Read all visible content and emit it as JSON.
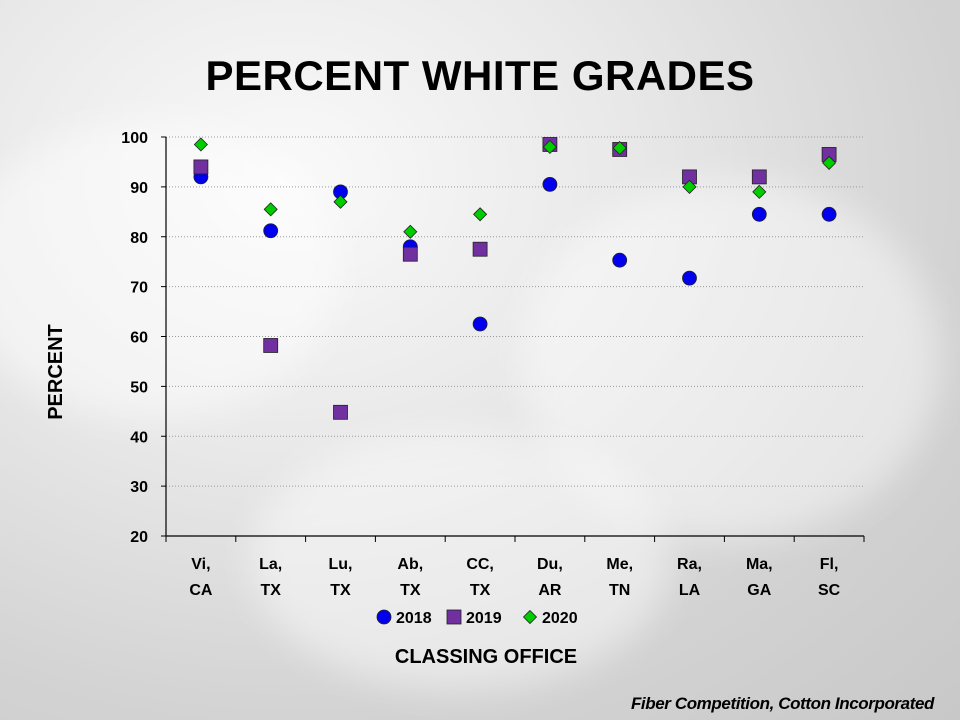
{
  "slide": {
    "title": "PERCENT WHITE GRADES",
    "credit": "Fiber Competition, Cotton Incorporated"
  },
  "chart_data": {
    "type": "scatter",
    "title": "PERCENT WHITE GRADES",
    "xlabel": "CLASSING OFFICE",
    "ylabel": "PERCENT",
    "ylim": [
      20,
      100
    ],
    "y_ticks": [
      20,
      30,
      40,
      50,
      60,
      70,
      80,
      90,
      100
    ],
    "grid": "horizontal-dotted",
    "legend": "bottom-center",
    "categories": [
      [
        "Vi,",
        "CA"
      ],
      [
        "La,",
        "TX"
      ],
      [
        "Lu,",
        "TX"
      ],
      [
        "Ab,",
        "TX"
      ],
      [
        "CC,",
        "TX"
      ],
      [
        "Du,",
        "AR"
      ],
      [
        "Me,",
        "TN"
      ],
      [
        "Ra,",
        "LA"
      ],
      [
        "Ma,",
        "GA"
      ],
      [
        "Fl,",
        "SC"
      ]
    ],
    "series": [
      {
        "name": "2018",
        "marker": "circle",
        "color": "#0000ee",
        "values": [
          92,
          81.2,
          89,
          78,
          62.5,
          90.5,
          75.3,
          71.7,
          84.5,
          84.5
        ]
      },
      {
        "name": "2019",
        "marker": "square",
        "color": "#7030a0",
        "values": [
          94,
          58.2,
          44.8,
          76.5,
          77.5,
          98.5,
          97.5,
          92,
          92,
          96.5
        ]
      },
      {
        "name": "2020",
        "marker": "diamond",
        "color": "#00cc00",
        "values": [
          98.5,
          85.5,
          87,
          81,
          84.5,
          98,
          97.8,
          90,
          89,
          94.8
        ]
      }
    ]
  }
}
